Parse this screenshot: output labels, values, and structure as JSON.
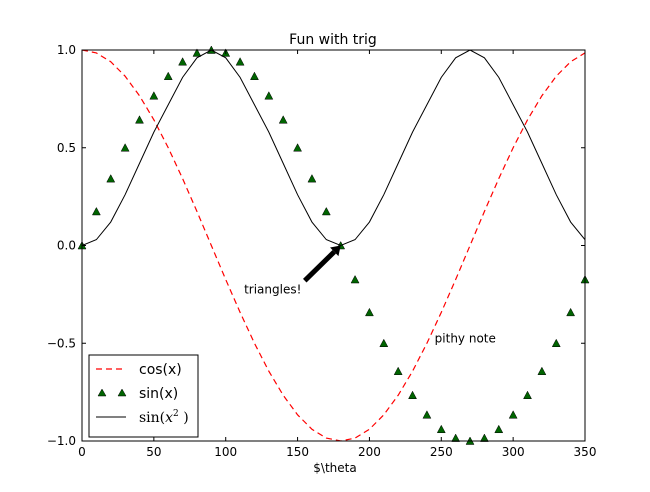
{
  "chart_data": {
    "type": "line",
    "title": "Fun with trig",
    "xlabel": "$\\theta",
    "ylabel": "",
    "xlim": [
      0,
      350
    ],
    "ylim": [
      -1.0,
      1.0
    ],
    "xticks": [
      0,
      50,
      100,
      150,
      200,
      250,
      300,
      350
    ],
    "xtick_labels": [
      "0",
      "50",
      "100",
      "150",
      "200",
      "250",
      "300",
      "350"
    ],
    "yticks": [
      1.0,
      0.5,
      0.0,
      -0.5,
      -1.0
    ],
    "ytick_labels": [
      "1.0",
      "0.5",
      "0.0",
      "−0.5",
      "−1.0"
    ],
    "grid": false,
    "legend_position": "lower-left",
    "series": [
      {
        "name": "cos(x)",
        "style": "dashed",
        "color": "#ff0000",
        "x": [
          0,
          10,
          20,
          30,
          40,
          50,
          60,
          70,
          80,
          90,
          100,
          110,
          120,
          130,
          140,
          150,
          160,
          170,
          180,
          190,
          200,
          210,
          220,
          230,
          240,
          250,
          260,
          270,
          280,
          290,
          300,
          310,
          320,
          330,
          340,
          350
        ],
        "y": [
          1.0,
          0.985,
          0.94,
          0.866,
          0.766,
          0.643,
          0.5,
          0.342,
          0.174,
          0.0,
          -0.174,
          -0.342,
          -0.5,
          -0.643,
          -0.766,
          -0.866,
          -0.94,
          -0.985,
          -1.0,
          -0.985,
          -0.94,
          -0.866,
          -0.766,
          -0.643,
          -0.5,
          -0.342,
          -0.174,
          0.0,
          0.174,
          0.342,
          0.5,
          0.643,
          0.766,
          0.866,
          0.94,
          0.985
        ]
      },
      {
        "name": "sin(x)",
        "style": "triangle-markers",
        "color": "#006400",
        "x": [
          0,
          10,
          20,
          30,
          40,
          50,
          60,
          70,
          80,
          90,
          100,
          110,
          120,
          130,
          140,
          150,
          160,
          170,
          180,
          190,
          200,
          210,
          220,
          230,
          240,
          250,
          260,
          270,
          280,
          290,
          300,
          310,
          320,
          330,
          340,
          350
        ],
        "y": [
          0.0,
          0.174,
          0.342,
          0.5,
          0.643,
          0.766,
          0.866,
          0.94,
          0.985,
          1.0,
          0.985,
          0.94,
          0.866,
          0.766,
          0.643,
          0.5,
          0.342,
          0.174,
          0.0,
          -0.174,
          -0.342,
          -0.5,
          -0.643,
          -0.766,
          -0.866,
          -0.94,
          -0.985,
          -1.0,
          -0.985,
          -0.94,
          -0.866,
          -0.766,
          -0.643,
          -0.5,
          -0.342,
          -0.174
        ]
      },
      {
        "name": "sin(x²)",
        "legend_label_main": "sin(",
        "legend_label_var": "x",
        "legend_label_exp": "2",
        "legend_label_close": " )",
        "style": "solid",
        "color": "#000000",
        "x": [
          0,
          10,
          20,
          30,
          40,
          50,
          60,
          70,
          80,
          90,
          100,
          110,
          120,
          130,
          140,
          150,
          160,
          170,
          180,
          190,
          200,
          210,
          220,
          230,
          240,
          250,
          260,
          270,
          280,
          290,
          300,
          310,
          320,
          330,
          340,
          350
        ],
        "y": [
          0.0,
          0.03,
          0.12,
          0.26,
          0.42,
          0.58,
          0.72,
          0.86,
          0.96,
          1.0,
          0.96,
          0.86,
          0.72,
          0.58,
          0.42,
          0.26,
          0.12,
          0.03,
          0.0,
          0.03,
          0.12,
          0.26,
          0.42,
          0.58,
          0.72,
          0.86,
          0.96,
          1.0,
          0.96,
          0.86,
          0.72,
          0.58,
          0.42,
          0.26,
          0.12,
          0.03
        ]
      }
    ],
    "annotations": [
      {
        "text": "triangles!",
        "arrow_to": [
          180,
          0.0
        ],
        "arrow_from": [
          155,
          -0.18
        ]
      },
      {
        "text": "pithy note",
        "at": [
          250,
          -0.5
        ]
      }
    ]
  }
}
